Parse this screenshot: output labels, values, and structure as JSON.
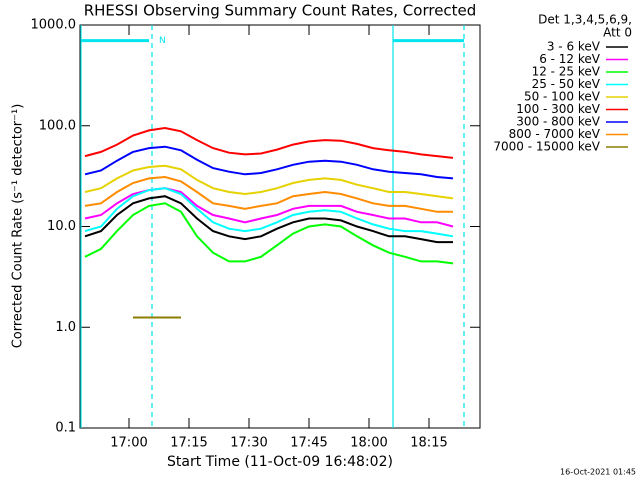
{
  "chart_data": {
    "type": "line",
    "title": "RHESSI Observing Summary Count Rates, Corrected",
    "xlabel": "Start Time (11-Oct-09 16:48:02)",
    "ylabel": "Corrected Count Rate (s⁻¹ detector⁻¹)",
    "legend_title": [
      "Det 1,3,4,5,6,9,",
      "Att 0"
    ],
    "footer": "16-Oct-2021 01:45",
    "log_y": true,
    "xlim": [
      1007.75,
      1107.75
    ],
    "xticks": [
      {
        "value": 1020,
        "label": "17:00"
      },
      {
        "value": 1035,
        "label": "17:15"
      },
      {
        "value": 1050,
        "label": "17:30"
      },
      {
        "value": 1065,
        "label": "17:45"
      },
      {
        "value": 1080,
        "label": "18:00"
      },
      {
        "value": 1095,
        "label": "18:15"
      }
    ],
    "ylim": [
      0.1,
      1000
    ],
    "yticks": [
      0.1,
      {
        "value": 1,
        "label": "1.0"
      },
      {
        "value": 10,
        "label": "10.0"
      },
      {
        "value": 100,
        "label": "100.0"
      },
      {
        "value": 1000,
        "label": "1000.0"
      }
    ],
    "x": [
      1009,
      1013,
      1017,
      1021,
      1025,
      1029,
      1033,
      1037,
      1041,
      1045,
      1049,
      1053,
      1057,
      1061,
      1065,
      1069,
      1073,
      1077,
      1081,
      1085,
      1089,
      1093,
      1097,
      1101
    ],
    "series": [
      {
        "name": "3 - 6 keV",
        "color": "#000000",
        "values": [
          8,
          9,
          13,
          17,
          19,
          20,
          17,
          12,
          9,
          8,
          7.5,
          8,
          9.5,
          11,
          12,
          12,
          11.5,
          10,
          9,
          8,
          8,
          7.5,
          7,
          7
        ]
      },
      {
        "name": "6 - 12 keV",
        "color": "#ff00ff",
        "values": [
          12,
          13,
          17,
          21,
          23,
          24,
          22,
          16,
          13,
          12,
          11,
          12,
          13,
          15,
          16,
          16,
          16,
          14,
          13,
          12,
          12,
          11,
          11,
          10
        ]
      },
      {
        "name": "12 - 25 keV",
        "color": "#00ff00",
        "values": [
          5,
          6,
          9,
          13,
          16,
          17,
          14,
          8,
          5.5,
          4.5,
          4.5,
          5,
          6.5,
          8.5,
          10,
          10.5,
          10,
          8,
          6.5,
          5.5,
          5,
          4.5,
          4.5,
          4.3
        ]
      },
      {
        "name": "25 - 50 keV",
        "color": "#00ffff",
        "values": [
          9,
          10,
          15,
          20,
          23,
          24,
          21,
          15,
          11,
          9.5,
          9,
          9.5,
          11,
          13,
          14,
          14.5,
          14,
          12,
          10.5,
          9.5,
          9,
          9,
          8.5,
          8
        ]
      },
      {
        "name": "50 - 100 keV",
        "color": "#e6d200",
        "values": [
          22,
          24,
          30,
          36,
          39,
          40,
          37,
          29,
          24,
          22,
          21,
          22,
          24,
          27,
          29,
          30,
          29,
          26,
          24,
          22,
          22,
          21,
          20,
          19
        ]
      },
      {
        "name": "100 - 300 keV",
        "color": "#ff0000",
        "values": [
          50,
          55,
          65,
          80,
          90,
          95,
          88,
          72,
          60,
          54,
          52,
          53,
          58,
          65,
          70,
          72,
          71,
          66,
          60,
          57,
          55,
          52,
          50,
          48
        ]
      },
      {
        "name": "300 - 800 keV",
        "color": "#0000ff",
        "values": [
          33,
          36,
          45,
          55,
          60,
          62,
          57,
          46,
          38,
          35,
          33,
          34,
          37,
          41,
          44,
          45,
          44,
          41,
          37,
          35,
          34,
          33,
          31,
          30
        ]
      },
      {
        "name": "800 - 7000 keV",
        "color": "#ff8c00",
        "values": [
          16,
          17,
          22,
          27,
          30,
          31,
          28,
          22,
          17,
          16,
          15,
          16,
          17,
          20,
          21,
          22,
          21,
          19,
          17,
          16,
          16,
          15,
          14,
          14
        ]
      },
      {
        "name": "7000 - 15000 keV",
        "color": "#8b7d00",
        "values": [
          null,
          null,
          null,
          1.25,
          1.25,
          1.25,
          1.25,
          null,
          null,
          null,
          null,
          null,
          null,
          null,
          null,
          null,
          null,
          null,
          null,
          null,
          null,
          null,
          null,
          null
        ]
      }
    ],
    "flags": {
      "color": "#00e5ee",
      "lines": [
        {
          "x": 1008,
          "style": "solid"
        },
        {
          "x": 1025.75,
          "style": "dashed"
        },
        {
          "x": 1086,
          "style": "solid"
        },
        {
          "x": 1103.75,
          "style": "dashed"
        }
      ],
      "bars": [
        {
          "x": [
            1008,
            1025
          ],
          "y": 700
        },
        {
          "x": [
            1086,
            1103.75
          ],
          "y": 700
        }
      ],
      "label": {
        "text": "N",
        "x": 1027.5,
        "y": 700
      }
    }
  }
}
